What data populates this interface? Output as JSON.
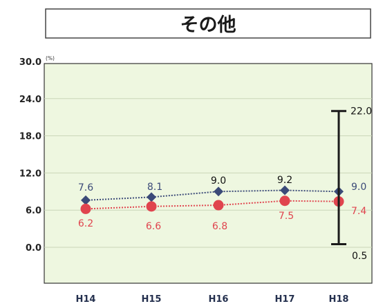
{
  "title": "その他",
  "chart_data": {
    "type": "line",
    "title": "その他",
    "unit": "(%)",
    "categories": [
      "H14",
      "H15",
      "H16",
      "H17",
      "H18"
    ],
    "ylim": [
      0,
      30
    ],
    "yticks": [
      "30.0",
      "24.0",
      "18.0",
      "12.0",
      "6.0",
      "0.0"
    ],
    "grid": true,
    "series": [
      {
        "values": [
          7.6,
          8.1,
          9.0,
          9.2,
          9.0
        ],
        "labels": [
          "7.6",
          "8.1",
          "9.0",
          "9.2",
          "9.0"
        ],
        "color": "#3b4a78",
        "marker": "diamond"
      },
      {
        "values": [
          6.2,
          6.6,
          6.8,
          7.5,
          7.4
        ],
        "labels": [
          "6.2",
          "6.6",
          "6.8",
          "7.5",
          "7.4"
        ],
        "color": "#e0444e",
        "marker": "circle"
      }
    ],
    "range": {
      "category": "H18",
      "high": 22.0,
      "low": 0.5,
      "high_label": "22.0",
      "low_label": "0.5"
    }
  },
  "colors": {
    "plot_bg": "#eef7e0",
    "grid": "#c9d6b7",
    "border": "#333333"
  }
}
